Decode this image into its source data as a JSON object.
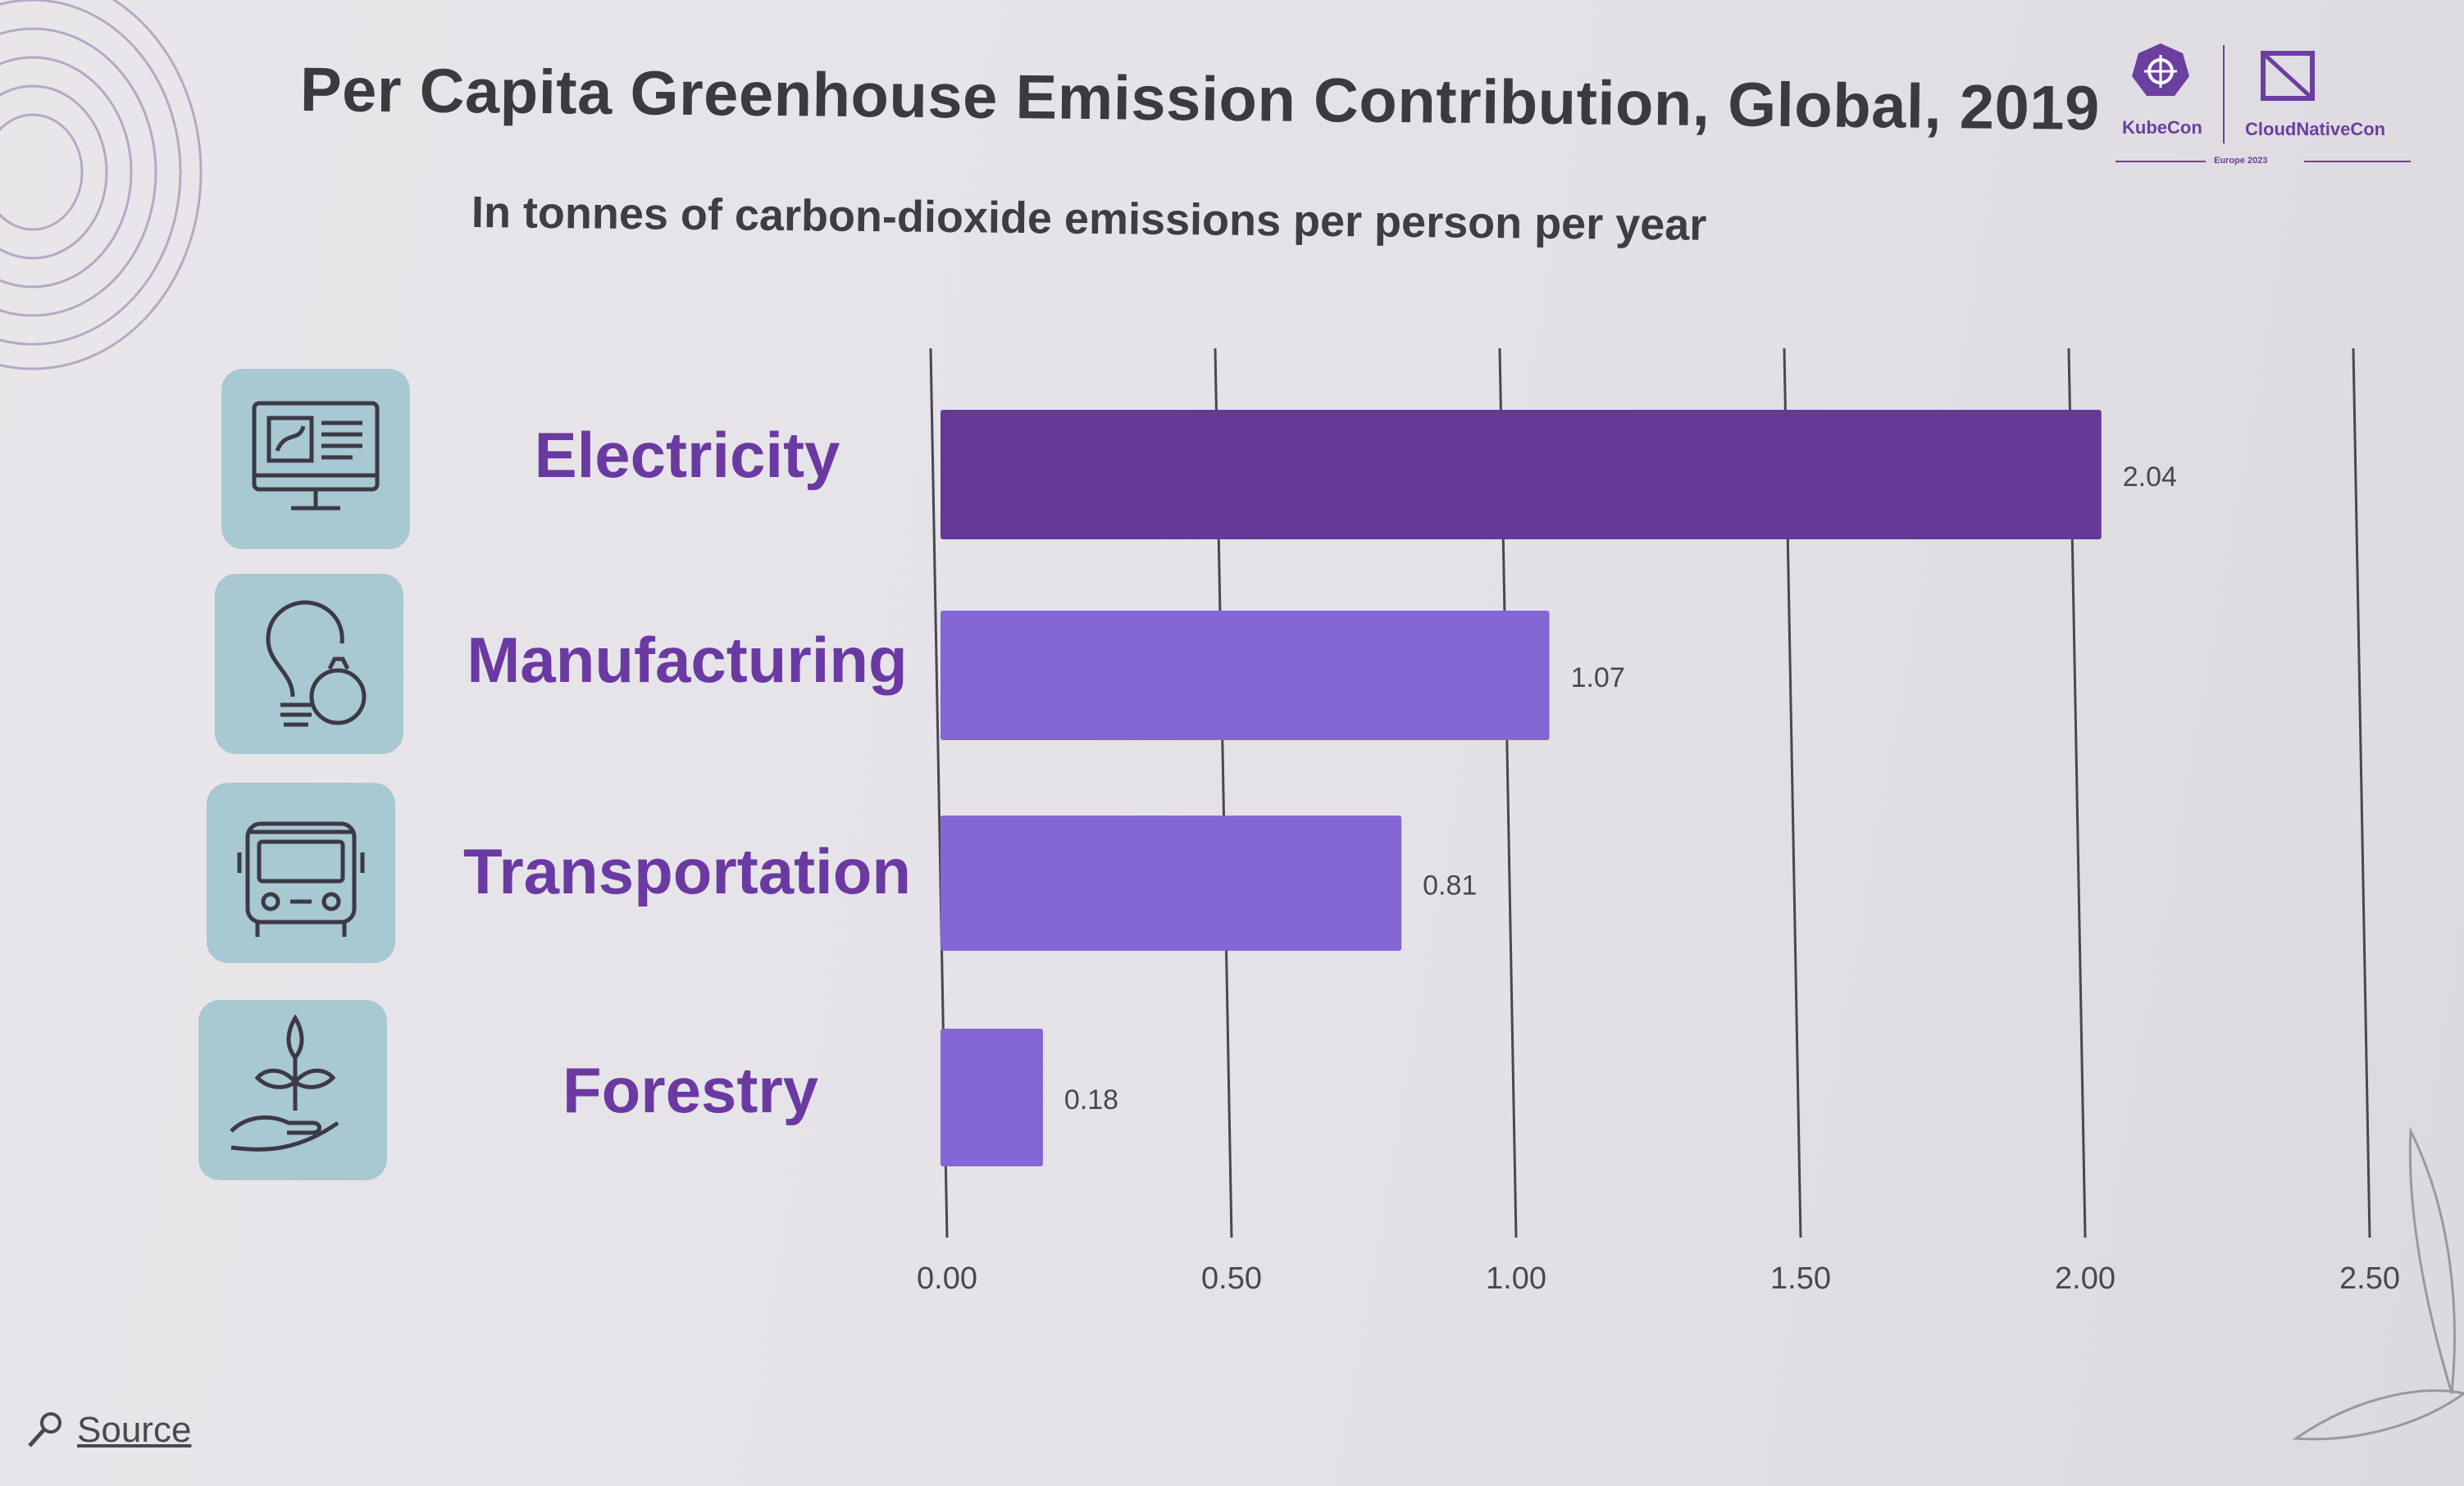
{
  "slide": {
    "title": "Per Capita Greenhouse Emission Contribution, Global, 2019",
    "subtitle": "In tonnes of carbon-dioxide emissions per person per year",
    "logo": {
      "left_label": "KubeCon",
      "right_label": "CloudNativeCon",
      "event": "Europe 2023"
    },
    "source_label": "Source",
    "colors": {
      "primary_bar": "#643a96",
      "secondary_bar": "#8466d4",
      "label": "#6a3aa2",
      "tile": "#a8c8d2"
    }
  },
  "categories_meta": [
    {
      "label": "Electricity",
      "icon": "computer-monitor-icon"
    },
    {
      "label": "Manufacturing",
      "icon": "lightbulb-coins-icon"
    },
    {
      "label": "Transportation",
      "icon": "bus-icon"
    },
    {
      "label": "Forestry",
      "icon": "plant-in-hand-icon"
    }
  ],
  "chart_data": {
    "type": "bar",
    "orientation": "horizontal",
    "title": "Per Capita Greenhouse Emission Contribution, Global, 2019",
    "subtitle": "In tonnes of carbon-dioxide emissions per person per year",
    "categories": [
      "Electricity",
      "Manufacturing",
      "Transportation",
      "Forestry"
    ],
    "values": [
      2.04,
      1.07,
      0.81,
      0.18
    ],
    "data_labels": [
      "2.04",
      "1.07",
      "0.81",
      "0.18"
    ],
    "xlim": [
      0,
      2.5
    ],
    "ticks": [
      0,
      0.5,
      1.0,
      1.5,
      2.0,
      2.5
    ],
    "tick_labels": [
      "0.00",
      "0.50",
      "1.00",
      "1.50",
      "2.00",
      "2.50"
    ],
    "grid": true,
    "legend": "none"
  }
}
